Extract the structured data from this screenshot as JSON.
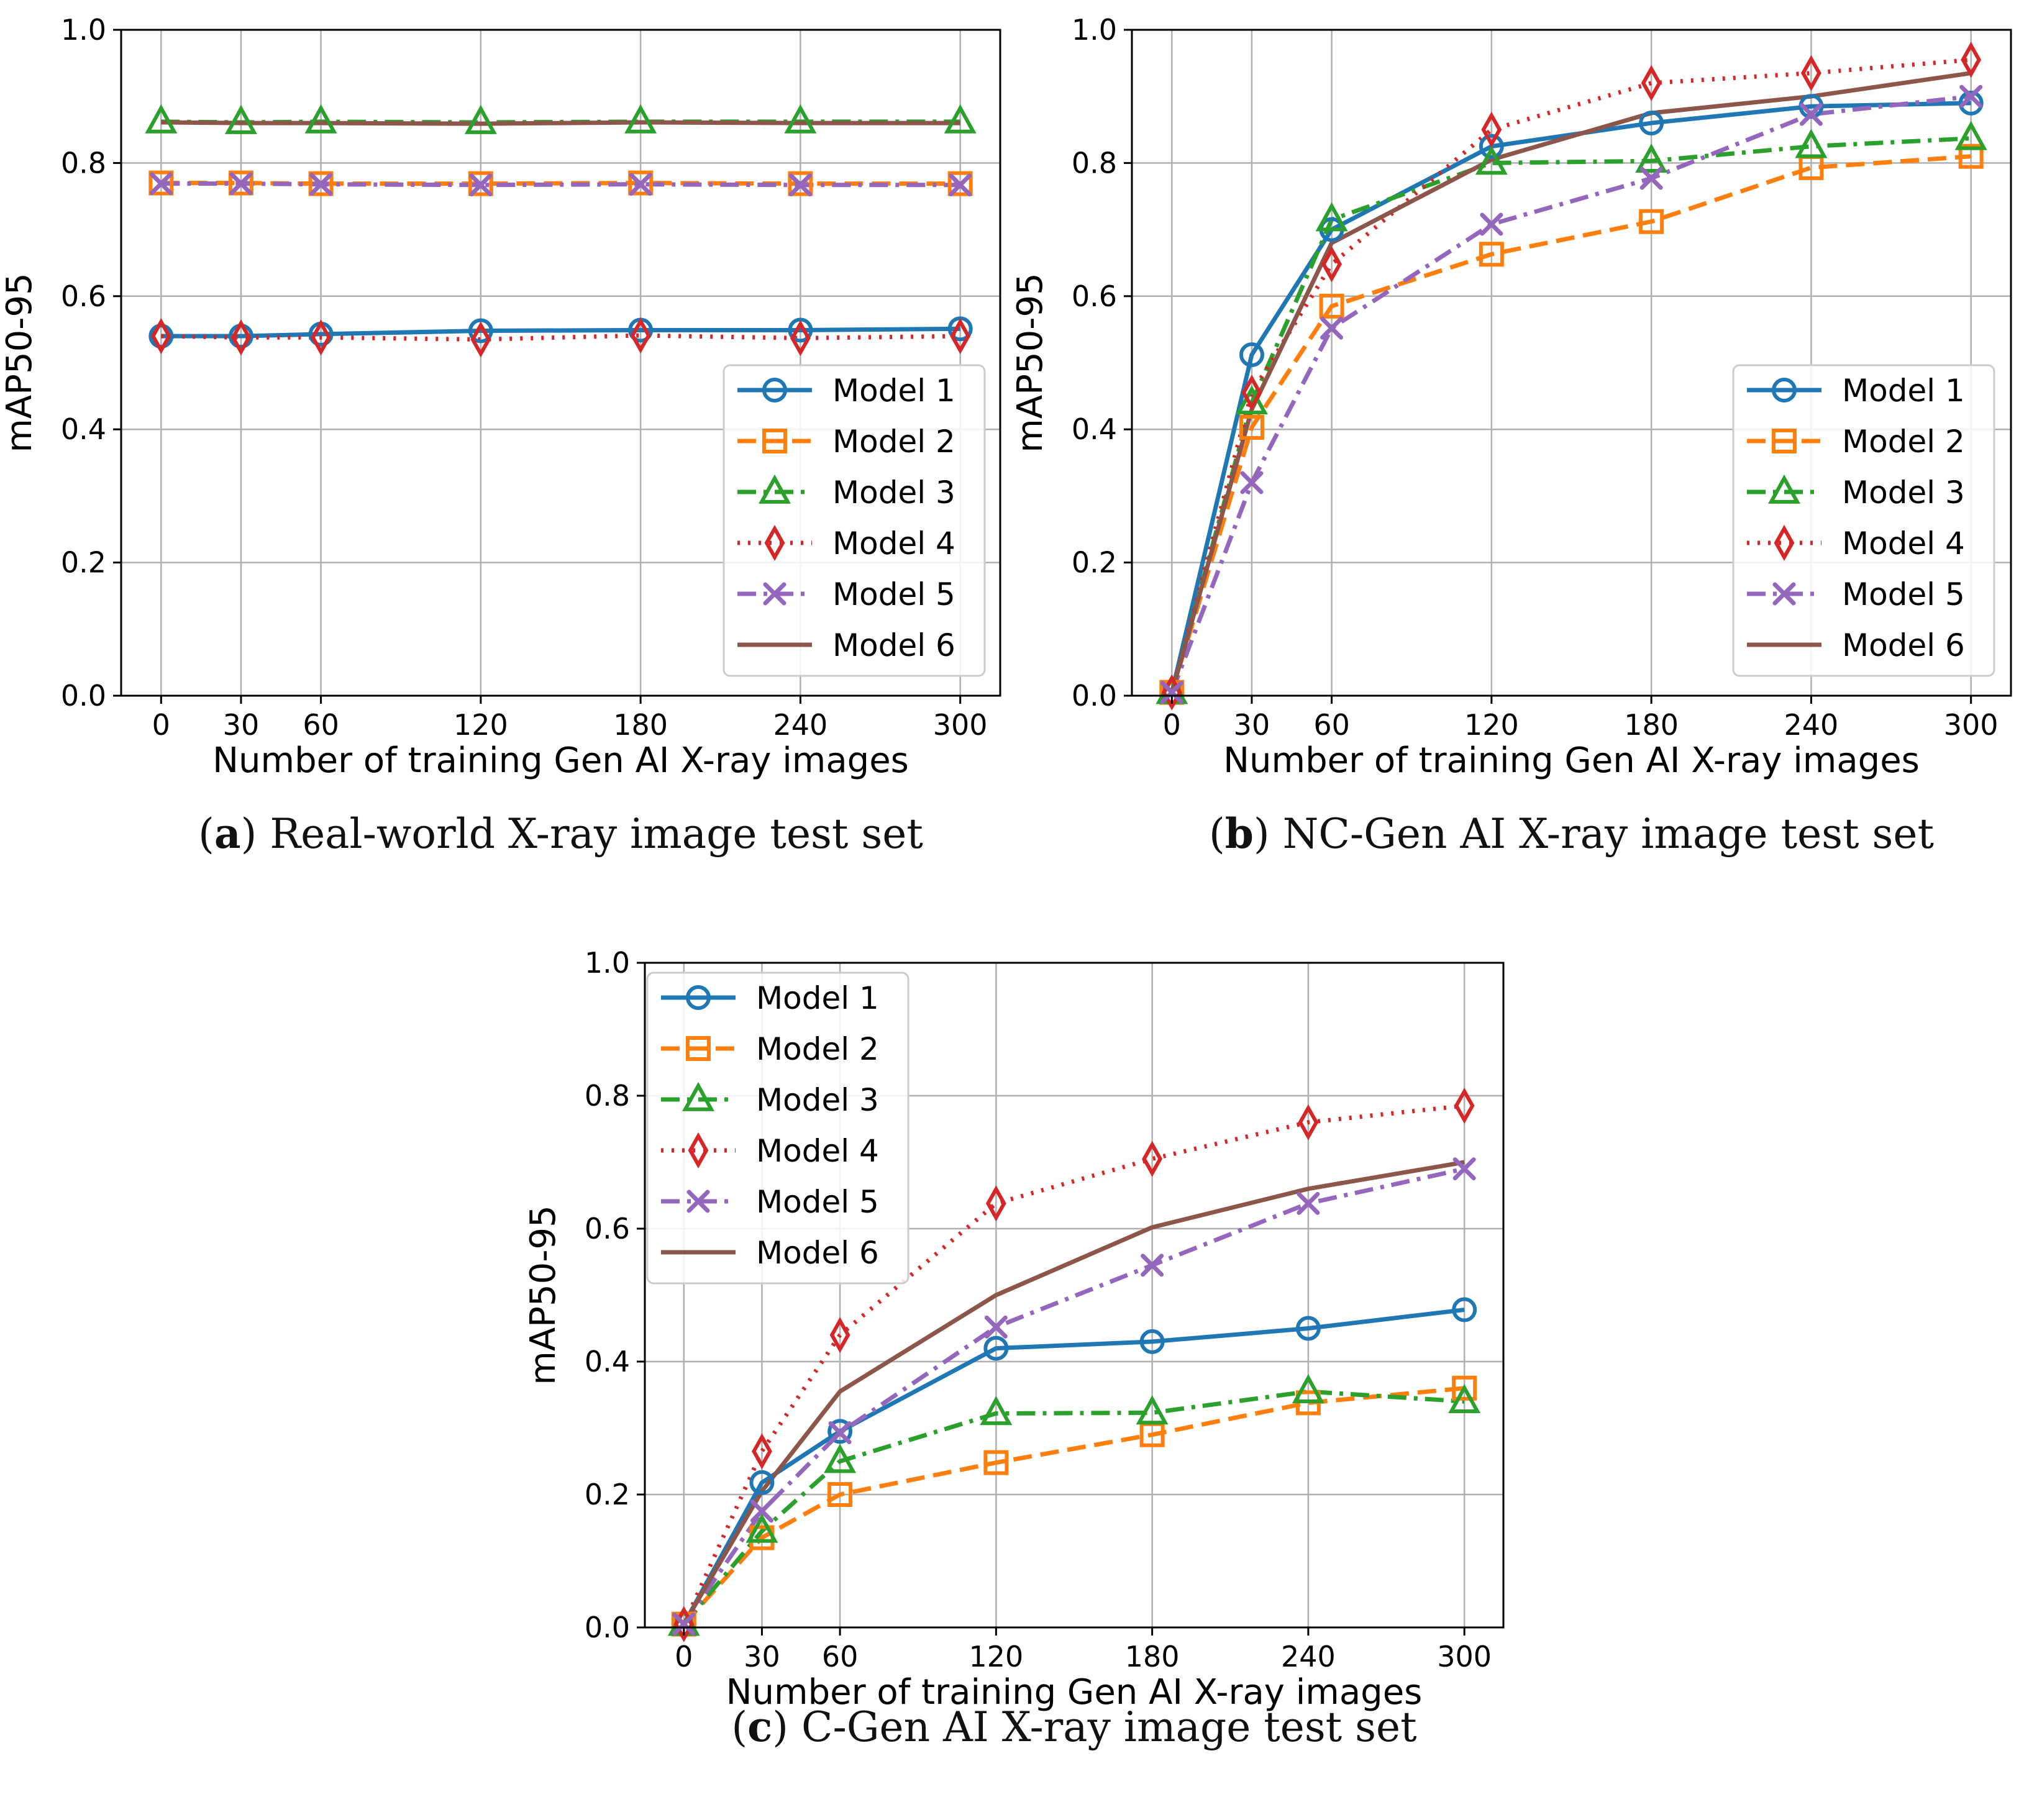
{
  "series_styles": [
    {
      "name": "Model 1",
      "color": "#1f77b4",
      "marker": "circle",
      "dash": "solid"
    },
    {
      "name": "Model 2",
      "color": "#ff7f0e",
      "marker": "square",
      "dash": "dashed"
    },
    {
      "name": "Model 3",
      "color": "#2ca02c",
      "marker": "triangle",
      "dash": "dashdot"
    },
    {
      "name": "Model 4",
      "color": "#d62728",
      "marker": "diamond",
      "dash": "dotted"
    },
    {
      "name": "Model 5",
      "color": "#9467bd",
      "marker": "x",
      "dash": "dashdot"
    },
    {
      "name": "Model 6",
      "color": "#8c564b",
      "marker": "none",
      "dash": "solid"
    }
  ],
  "chart_data": [
    {
      "type": "line",
      "panel": "a",
      "caption_letter": "a",
      "caption": "Real-world X-ray image test set",
      "xlabel": "Number of training Gen AI X-ray images",
      "ylabel": "mAP50-95",
      "x": [
        0,
        30,
        60,
        120,
        180,
        240,
        300
      ],
      "xlim": [
        -15,
        315
      ],
      "ylim": [
        0.0,
        1.0
      ],
      "yticks": [
        "0.0",
        "0.2",
        "0.4",
        "0.6",
        "0.8",
        "1.0"
      ],
      "grid": true,
      "legend_position": "lower-right",
      "series": [
        {
          "name": "Model 1",
          "values": [
            0.54,
            0.54,
            0.543,
            0.548,
            0.549,
            0.549,
            0.551
          ]
        },
        {
          "name": "Model 2",
          "values": [
            0.77,
            0.77,
            0.769,
            0.769,
            0.77,
            0.769,
            0.769
          ]
        },
        {
          "name": "Model 3",
          "values": [
            0.862,
            0.861,
            0.862,
            0.861,
            0.862,
            0.862,
            0.862
          ]
        },
        {
          "name": "Model 4",
          "values": [
            0.54,
            0.538,
            0.538,
            0.535,
            0.541,
            0.537,
            0.54
          ]
        },
        {
          "name": "Model 5",
          "values": [
            0.769,
            0.769,
            0.768,
            0.767,
            0.768,
            0.767,
            0.767
          ]
        },
        {
          "name": "Model 6",
          "values": [
            0.861,
            0.86,
            0.86,
            0.859,
            0.861,
            0.86,
            0.86
          ]
        }
      ]
    },
    {
      "type": "line",
      "panel": "b",
      "caption_letter": "b",
      "caption": "NC-Gen AI X-ray image test set",
      "xlabel": "Number of training Gen AI X-ray images",
      "ylabel": "mAP50-95",
      "x": [
        0,
        30,
        60,
        120,
        180,
        240,
        300
      ],
      "xlim": [
        -15,
        315
      ],
      "ylim": [
        0.0,
        1.0
      ],
      "yticks": [
        "0.0",
        "0.2",
        "0.4",
        "0.6",
        "0.8",
        "1.0"
      ],
      "grid": true,
      "legend_position": "lower-right",
      "series": [
        {
          "name": "Model 1",
          "values": [
            0.005,
            0.512,
            0.7,
            0.825,
            0.86,
            0.885,
            0.89
          ]
        },
        {
          "name": "Model 2",
          "values": [
            0.005,
            0.403,
            0.585,
            0.663,
            0.712,
            0.793,
            0.81
          ]
        },
        {
          "name": "Model 3",
          "values": [
            0.005,
            0.44,
            0.715,
            0.8,
            0.803,
            0.825,
            0.837
          ]
        },
        {
          "name": "Model 4",
          "values": [
            0.005,
            0.455,
            0.648,
            0.85,
            0.92,
            0.935,
            0.955
          ]
        },
        {
          "name": "Model 5",
          "values": [
            0.005,
            0.32,
            0.552,
            0.708,
            0.777,
            0.873,
            0.9
          ]
        },
        {
          "name": "Model 6",
          "values": [
            0.005,
            0.43,
            0.68,
            0.805,
            0.875,
            0.9,
            0.935
          ]
        }
      ]
    },
    {
      "type": "line",
      "panel": "c",
      "caption_letter": "c",
      "caption": "C-Gen AI X-ray image test set",
      "xlabel": "Number of training Gen AI X-ray images",
      "ylabel": "mAP50-95",
      "x": [
        0,
        30,
        60,
        120,
        180,
        240,
        300
      ],
      "xlim": [
        -15,
        315
      ],
      "ylim": [
        0.0,
        1.0
      ],
      "yticks": [
        "0.0",
        "0.2",
        "0.4",
        "0.6",
        "0.8",
        "1.0"
      ],
      "grid": true,
      "legend_position": "upper-left",
      "series": [
        {
          "name": "Model 1",
          "values": [
            0.005,
            0.218,
            0.295,
            0.42,
            0.43,
            0.45,
            0.478
          ]
        },
        {
          "name": "Model 2",
          "values": [
            0.005,
            0.135,
            0.2,
            0.248,
            0.29,
            0.338,
            0.36
          ]
        },
        {
          "name": "Model 3",
          "values": [
            0.005,
            0.145,
            0.25,
            0.322,
            0.323,
            0.355,
            0.34
          ]
        },
        {
          "name": "Model 4",
          "values": [
            0.005,
            0.265,
            0.44,
            0.638,
            0.705,
            0.76,
            0.785
          ]
        },
        {
          "name": "Model 5",
          "values": [
            0.005,
            0.175,
            0.293,
            0.452,
            0.545,
            0.638,
            0.69
          ]
        },
        {
          "name": "Model 6",
          "values": [
            0.005,
            0.205,
            0.355,
            0.5,
            0.602,
            0.66,
            0.7
          ]
        }
      ]
    }
  ]
}
